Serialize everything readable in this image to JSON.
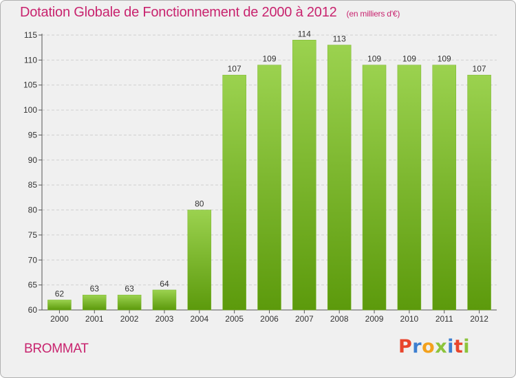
{
  "header": {
    "title": "Dotation Globale de Fonctionnement de 2000 à 2012",
    "unit": "(en milliers d'€)"
  },
  "footer": {
    "commune": "BROMMAT",
    "logo_text": "Proxiti",
    "logo_colors": [
      "#e8452c",
      "#3d7fd0",
      "#f3a11d",
      "#8cc43c",
      "#3d7fd0",
      "#e8452c",
      "#8cc43c"
    ]
  },
  "colors": {
    "title": "#c8236e",
    "bar_light": "#9bd24f",
    "bar_dark": "#5c9a0c",
    "grid": "#d0d0d0",
    "background": "#f0f0f0"
  },
  "chart_data": {
    "type": "bar",
    "title": "Dotation Globale de Fonctionnement de 2000 à 2012",
    "subtitle": "(en milliers d'€)",
    "xlabel": "",
    "ylabel": "",
    "categories": [
      "2000",
      "2001",
      "2002",
      "2003",
      "2004",
      "2005",
      "2006",
      "2007",
      "2008",
      "2009",
      "2010",
      "2011",
      "2012"
    ],
    "values": [
      62,
      63,
      63,
      64,
      80,
      107,
      109,
      114,
      113,
      109,
      109,
      109,
      107
    ],
    "ylim": [
      60,
      115
    ],
    "yticks": [
      60,
      65,
      70,
      75,
      80,
      85,
      90,
      95,
      100,
      105,
      110,
      115
    ],
    "grid": true,
    "legend": "none"
  }
}
